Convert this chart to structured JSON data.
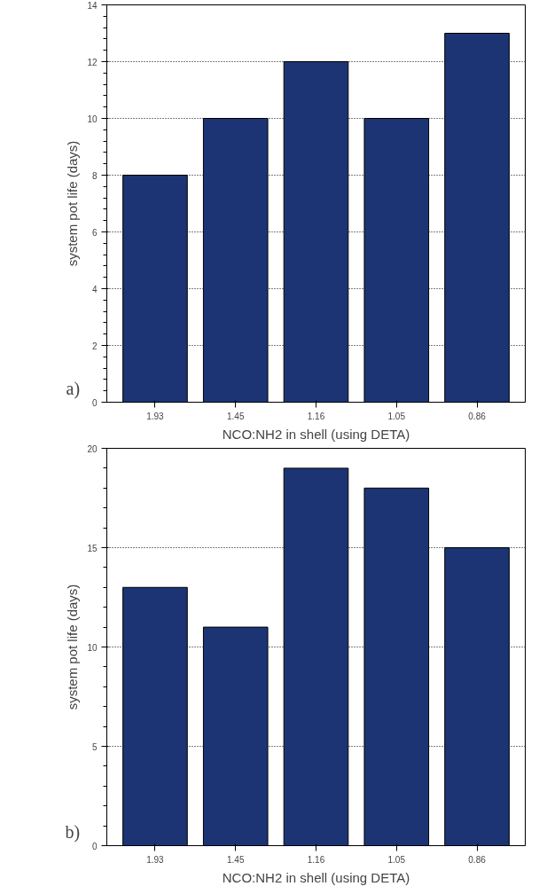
{
  "chart_data": [
    {
      "type": "bar",
      "categories": [
        "1.93",
        "1.45",
        "1.16",
        "1.05",
        "0.86"
      ],
      "values": [
        8,
        10,
        12,
        10,
        13
      ],
      "color": "#1c3473",
      "xlabel": "NCO:NH2 in shell (using DETA)",
      "ylabel": "system pot life (days)",
      "ylim": [
        0,
        14
      ],
      "yticks": [
        0,
        2,
        4,
        6,
        8,
        10,
        12,
        14
      ],
      "grid": "y",
      "annotations": [
        "a)"
      ]
    },
    {
      "type": "bar",
      "categories": [
        "1.93",
        "1.45",
        "1.16",
        "1.05",
        "0.86"
      ],
      "values": [
        13,
        11,
        19,
        18,
        15
      ],
      "color": "#1c3473",
      "xlabel": "NCO:NH2 in shell (using DETA)",
      "ylabel": "system pot life (days)",
      "ylim": [
        0,
        20
      ],
      "yticks": [
        0,
        5,
        10,
        15,
        20
      ],
      "grid": "y",
      "annotations": [
        "b)"
      ]
    }
  ]
}
